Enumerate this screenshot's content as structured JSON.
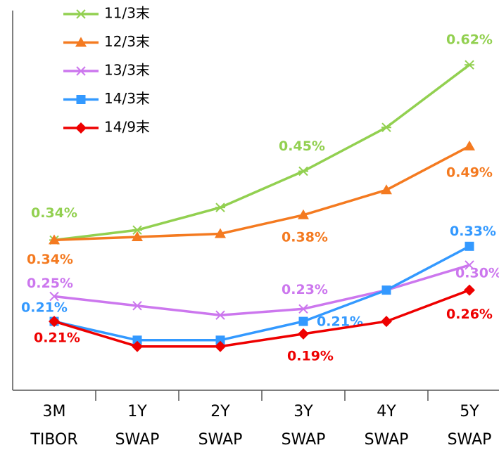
{
  "chart_data": {
    "type": "line",
    "categories": [
      [
        "3M",
        "TIBOR"
      ],
      [
        "1Y",
        "SWAP"
      ],
      [
        "2Y",
        "SWAP"
      ],
      [
        "3Y",
        "SWAP"
      ],
      [
        "4Y",
        "SWAP"
      ],
      [
        "5Y",
        "SWAP"
      ]
    ],
    "ylim": [
      0.1,
      0.7
    ],
    "legend": "top-left",
    "series": [
      {
        "name": "11/3末",
        "color": "#92d050",
        "marker": "asterisk",
        "values": [
          0.34,
          0.356,
          0.392,
          0.45,
          0.52,
          0.62
        ],
        "value_labels": [
          "0.34%",
          null,
          null,
          "0.45%",
          null,
          "0.62%"
        ]
      },
      {
        "name": "12/3末",
        "color": "#f47a20",
        "marker": "triangle",
        "values": [
          0.34,
          0.345,
          0.35,
          0.38,
          0.42,
          0.49
        ],
        "value_labels": [
          "0.34%",
          null,
          null,
          "0.38%",
          null,
          "0.49%"
        ]
      },
      {
        "name": "13/3末",
        "color": "#cc77ee",
        "marker": "x",
        "values": [
          0.25,
          0.235,
          0.22,
          0.23,
          0.26,
          0.3
        ],
        "value_labels": [
          "0.25%",
          null,
          null,
          "0.23%",
          null,
          "0.30%"
        ]
      },
      {
        "name": "14/3末",
        "color": "#3399ff",
        "marker": "square",
        "values": [
          0.21,
          0.18,
          0.18,
          0.21,
          0.26,
          0.33
        ],
        "value_labels": [
          "0.21%",
          null,
          null,
          "0.21%",
          null,
          "0.33%"
        ]
      },
      {
        "name": "14/9末",
        "color": "#ee0000",
        "marker": "diamond",
        "values": [
          0.21,
          0.17,
          0.17,
          0.19,
          0.21,
          0.26
        ],
        "value_labels": [
          "0.21%",
          null,
          null,
          "0.19%",
          null,
          "0.26%"
        ]
      }
    ]
  }
}
